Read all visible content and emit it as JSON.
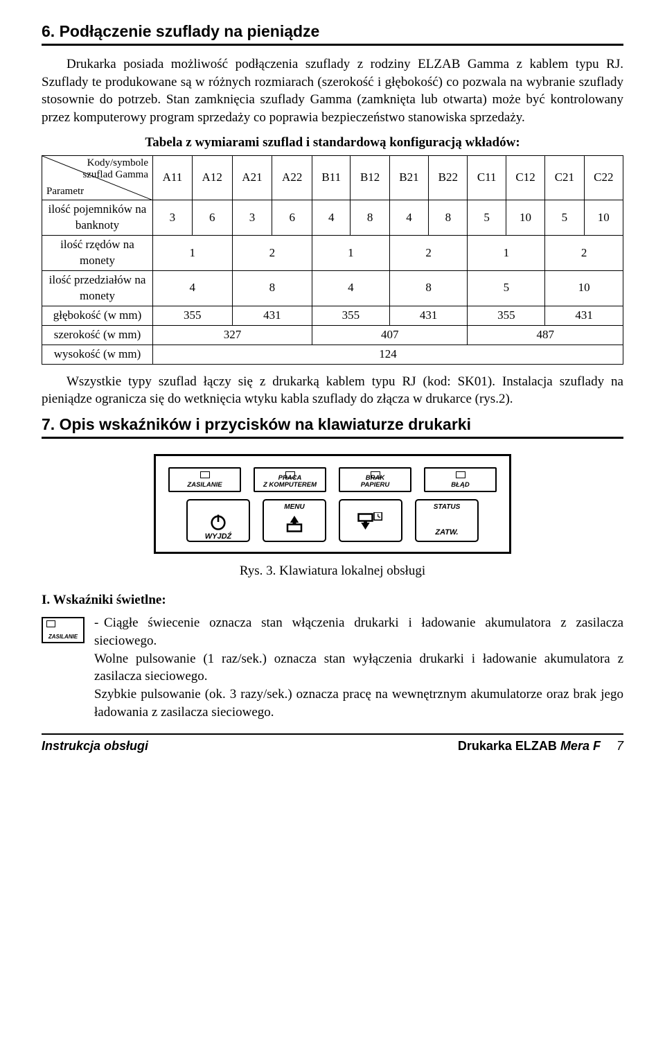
{
  "section6": {
    "title": "6. Podłączenie szuflady na pieniądze",
    "para": "Drukarka posiada możliwość podłączenia szuflady z rodziny ELZAB Gamma z kablem typu RJ. Szuflady te produkowane są w różnych rozmiarach (szerokość i głębokość) co pozwala na wybranie szuflady stosownie do potrzeb. Stan zamknięcia szuflady Gamma (zamknięta lub otwarta) może być kontrolowany przez komputerowy program sprzedaży co poprawia bezpieczeństwo stanowiska sprzedaży.",
    "table_caption": "Tabela z wymiarami szuflad i standardową konfiguracją wkładów:",
    "diag_top": "Kody/symbole\nszuflad Gamma",
    "diag_bot": "Parametr",
    "cols": [
      "A11",
      "A12",
      "A21",
      "A22",
      "B11",
      "B12",
      "B21",
      "B22",
      "C11",
      "C12",
      "C21",
      "C22"
    ],
    "rows": [
      {
        "label": "ilość pojemników na banknoty",
        "cells": [
          {
            "v": "3",
            "s": 1
          },
          {
            "v": "6",
            "s": 1
          },
          {
            "v": "3",
            "s": 1
          },
          {
            "v": "6",
            "s": 1
          },
          {
            "v": "4",
            "s": 1
          },
          {
            "v": "8",
            "s": 1
          },
          {
            "v": "4",
            "s": 1
          },
          {
            "v": "8",
            "s": 1
          },
          {
            "v": "5",
            "s": 1
          },
          {
            "v": "10",
            "s": 1
          },
          {
            "v": "5",
            "s": 1
          },
          {
            "v": "10",
            "s": 1
          }
        ]
      },
      {
        "label": "ilość rzędów na monety",
        "cells": [
          {
            "v": "1",
            "s": 2
          },
          {
            "v": "2",
            "s": 2
          },
          {
            "v": "1",
            "s": 2
          },
          {
            "v": "2",
            "s": 2
          },
          {
            "v": "1",
            "s": 2
          },
          {
            "v": "2",
            "s": 2
          }
        ]
      },
      {
        "label": "ilość przedziałów na monety",
        "cells": [
          {
            "v": "4",
            "s": 2
          },
          {
            "v": "8",
            "s": 2
          },
          {
            "v": "4",
            "s": 2
          },
          {
            "v": "8",
            "s": 2
          },
          {
            "v": "5",
            "s": 2
          },
          {
            "v": "10",
            "s": 2
          }
        ]
      },
      {
        "label": "głębokość (w mm)",
        "cells": [
          {
            "v": "355",
            "s": 2
          },
          {
            "v": "431",
            "s": 2
          },
          {
            "v": "355",
            "s": 2
          },
          {
            "v": "431",
            "s": 2
          },
          {
            "v": "355",
            "s": 2
          },
          {
            "v": "431",
            "s": 2
          }
        ]
      },
      {
        "label": "szerokość (w mm)",
        "cells": [
          {
            "v": "327",
            "s": 4
          },
          {
            "v": "407",
            "s": 4
          },
          {
            "v": "487",
            "s": 4
          }
        ]
      },
      {
        "label": "wysokość (w mm)",
        "cells": [
          {
            "v": "124",
            "s": 12
          }
        ]
      }
    ],
    "para2": "Wszystkie typy szuflad łączy się z drukarką kablem typu RJ (kod: SK01). Instalacja szuflady na pieniądze ogranicza się do wetknięcia wtyku kabla szuflady do złącza w drukarce (rys.2)."
  },
  "section7": {
    "title": "7. Opis wskaźników i przycisków na klawiaturze drukarki",
    "indicators": [
      {
        "label": "ZASILANIE"
      },
      {
        "label": "PRACA Z KOMPUTEREM"
      },
      {
        "label": "BRAK PAPIERU"
      },
      {
        "label": "BŁĄD"
      }
    ],
    "buttons": [
      {
        "top": "",
        "bot": "WYJDŹ",
        "glyph": "power"
      },
      {
        "top": "MENU",
        "bot": "",
        "glyph": "up"
      },
      {
        "top": "",
        "bot": "",
        "glyph": "down",
        "clock": true
      },
      {
        "top": "STATUS",
        "bot": "ZATW.",
        "glyph": ""
      }
    ],
    "fig_caption": "Rys. 3. Klawiatura lokalnej obsługi",
    "sub_i": "I. Wskaźniki świetlne:",
    "mini_label": "ZASILANIE",
    "bullet": "Ciągłe świecenie oznacza stan włączenia drukarki i ładowanie akumulatora z zasilacza sieciowego.",
    "bullet2": "Wolne pulsowanie (1 raz/sek.) oznacza stan wyłączenia drukarki i ładowanie akumulatora z zasilacza sieciowego.",
    "bullet3": "Szybkie pulsowanie (ok. 3 razy/sek.) oznacza pracę na wewnętrznym akumulatorze oraz brak jego ładowania z zasilacza sieciowego."
  },
  "footer": {
    "left": "Instrukcja obsługi",
    "right_brand": "Drukarka ELZAB",
    "right_model": "Mera F",
    "page": "7"
  }
}
